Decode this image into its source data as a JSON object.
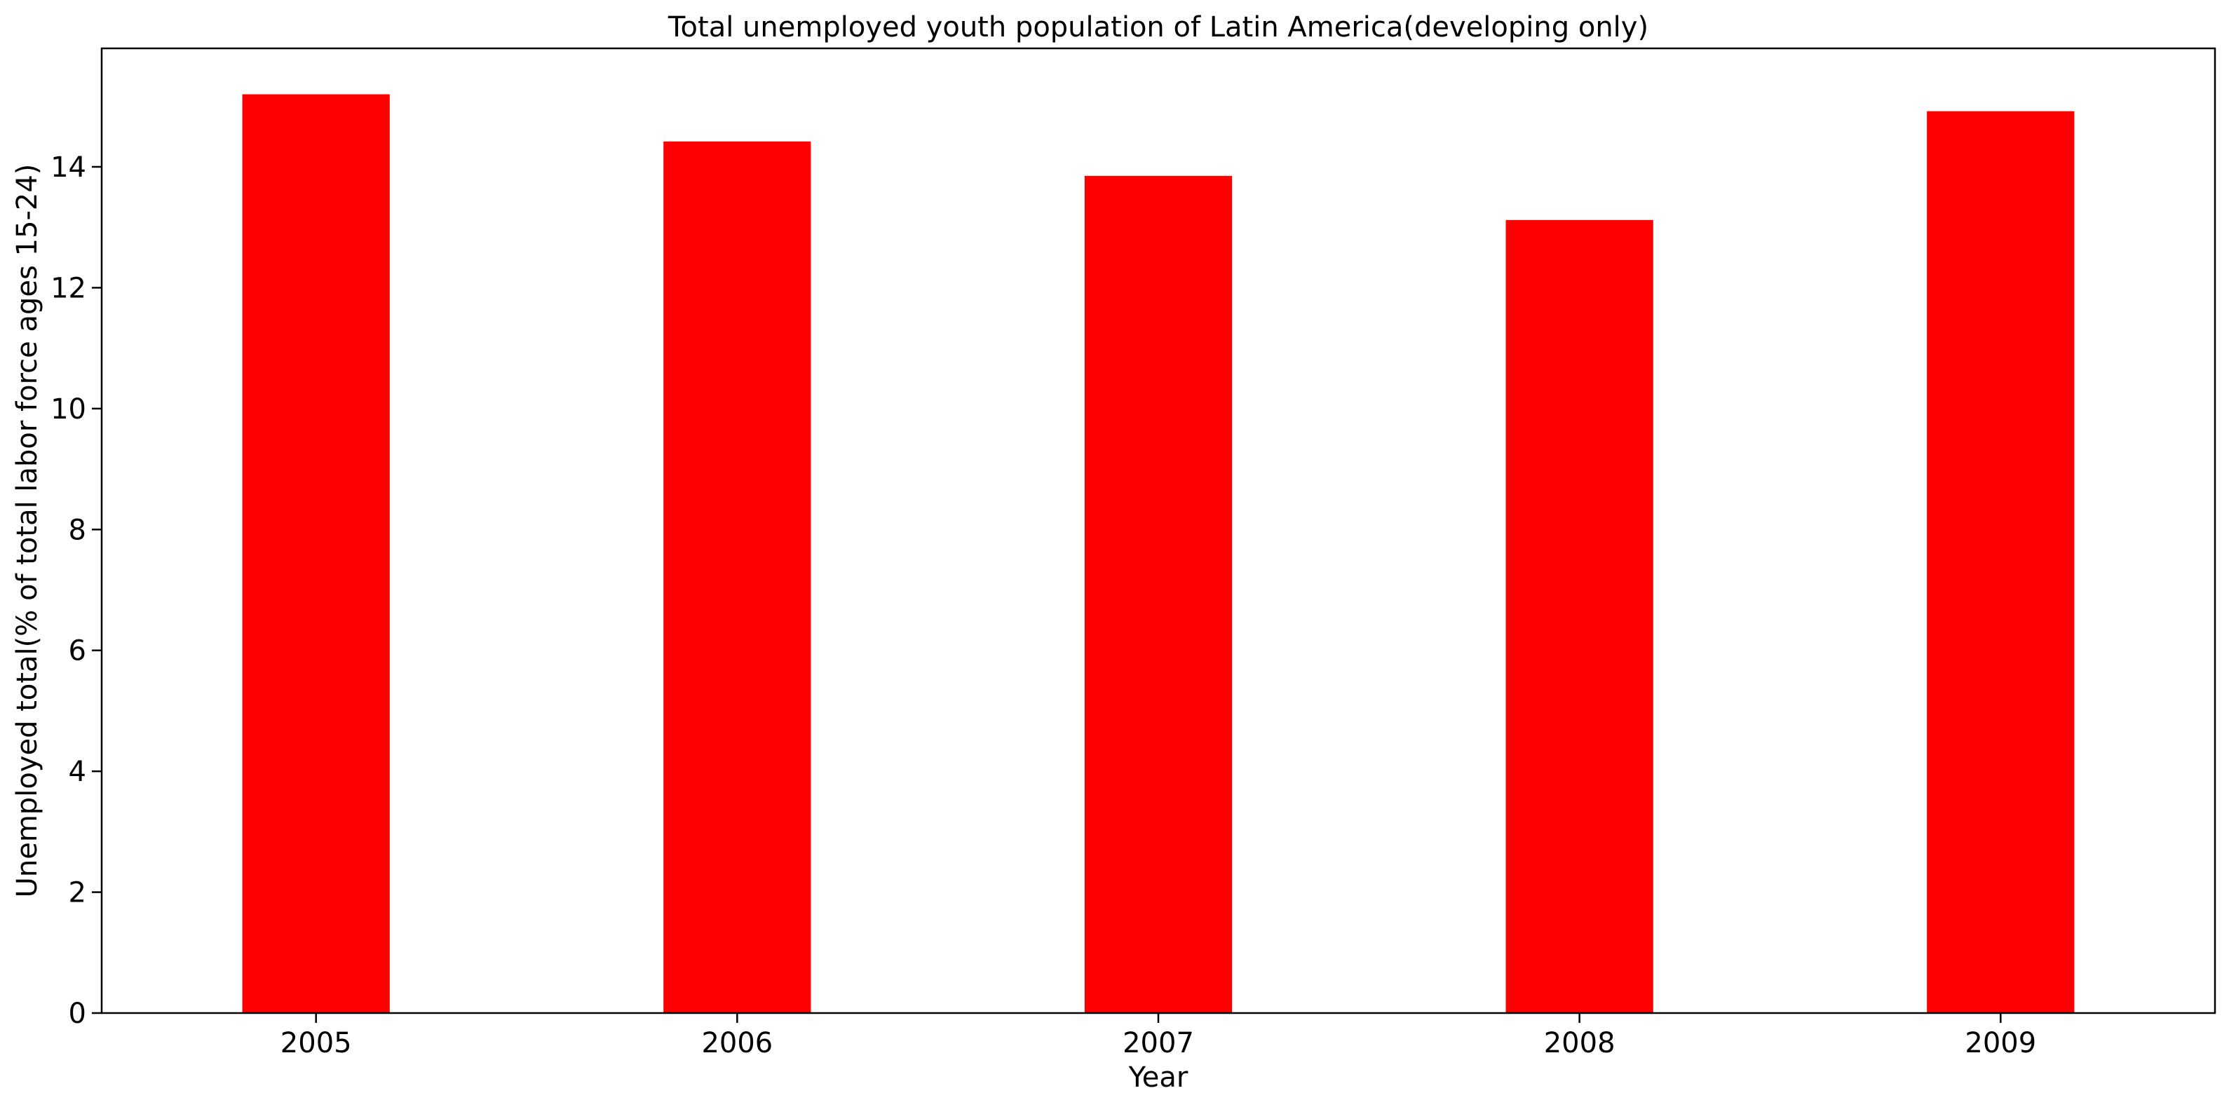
{
  "chart_data": {
    "type": "bar",
    "title": "Total unemployed youth population of Latin America(developing only)",
    "xlabel": "Year",
    "ylabel": "Unemployed total(% of total labor force ages 15-24)",
    "categories": [
      "2005",
      "2006",
      "2007",
      "2008",
      "2009"
    ],
    "values": [
      15.2,
      14.42,
      13.85,
      13.12,
      14.92
    ],
    "ylim": [
      0,
      15.96
    ],
    "yticks": [
      0,
      2,
      4,
      6,
      8,
      10,
      12,
      14
    ],
    "bar_color": "#ff0000",
    "grid": false,
    "legend": null
  }
}
